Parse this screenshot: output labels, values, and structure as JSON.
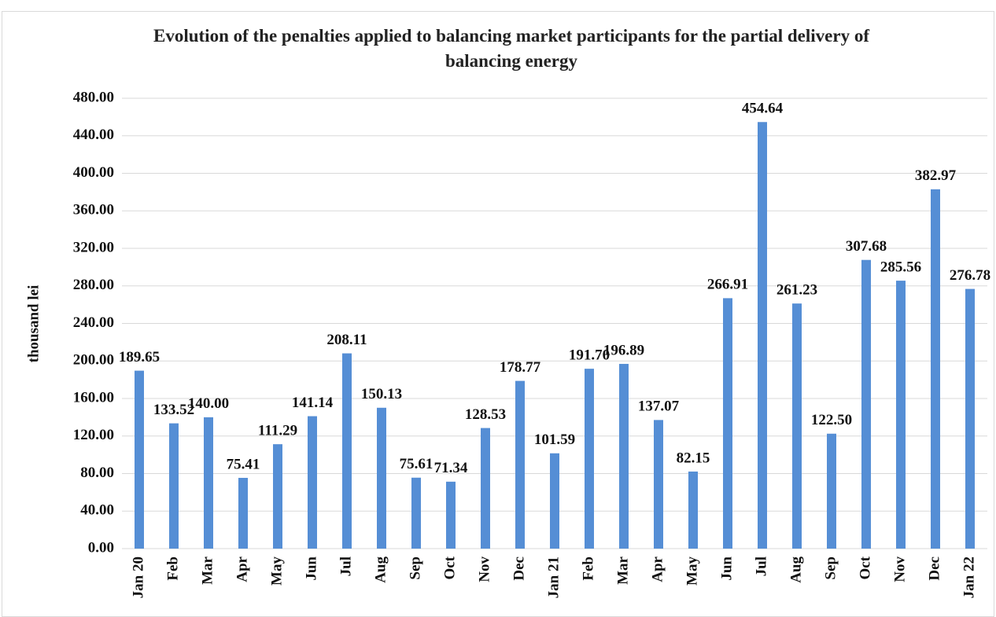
{
  "chart_data": {
    "type": "bar",
    "title": "Evolution of the penalties applied to balancing market participants for the partial delivery of balancing energy",
    "y_label": "thousand lei",
    "categories": [
      "Jan 20",
      "Feb",
      "Mar",
      "Apr",
      "May",
      "Jun",
      "Jul",
      "Aug",
      "Sep",
      "Oct",
      "Nov",
      "Dec",
      "Jan 21",
      "Feb",
      "Mar",
      "Apr",
      "May",
      "Jun",
      "Jul",
      "Aug",
      "Sep",
      "Oct",
      "Nov",
      "Dec",
      "Jan 22"
    ],
    "values": [
      189.65,
      133.52,
      140.0,
      75.41,
      111.29,
      141.14,
      208.11,
      150.13,
      75.61,
      71.34,
      128.53,
      178.77,
      101.59,
      191.7,
      196.89,
      137.07,
      82.15,
      266.91,
      454.64,
      261.23,
      122.5,
      307.68,
      285.56,
      382.97,
      276.78
    ],
    "value_labels": [
      "189.65",
      "133.52",
      "140.00",
      "75.41",
      "111.29",
      "141.14",
      "208.11",
      "150.13",
      "75.61",
      "71.34",
      "128.53",
      "178.77",
      "101.59",
      "191.70",
      "196.89",
      "137.07",
      "82.15",
      "266.91",
      "454.64",
      "261.23",
      "122.50",
      "307.68",
      "285.56",
      "382.97",
      "276.78"
    ],
    "color": "#558ed5",
    "ylim": [
      0,
      480
    ],
    "yticks": [
      {
        "value": 0,
        "label": "0.00"
      },
      {
        "value": 40,
        "label": "40.00"
      },
      {
        "value": 80,
        "label": "80.00"
      },
      {
        "value": 120,
        "label": "120.00"
      },
      {
        "value": 160,
        "label": "160.00"
      },
      {
        "value": 200,
        "label": "200.00"
      },
      {
        "value": 240,
        "label": "240.00"
      },
      {
        "value": 280,
        "label": "280.00"
      },
      {
        "value": 320,
        "label": "320.00"
      },
      {
        "value": 360,
        "label": "360.00"
      },
      {
        "value": 400,
        "label": "400.00"
      },
      {
        "value": 440,
        "label": "440.00"
      },
      {
        "value": 480,
        "label": "480.00"
      }
    ],
    "grid": true
  }
}
